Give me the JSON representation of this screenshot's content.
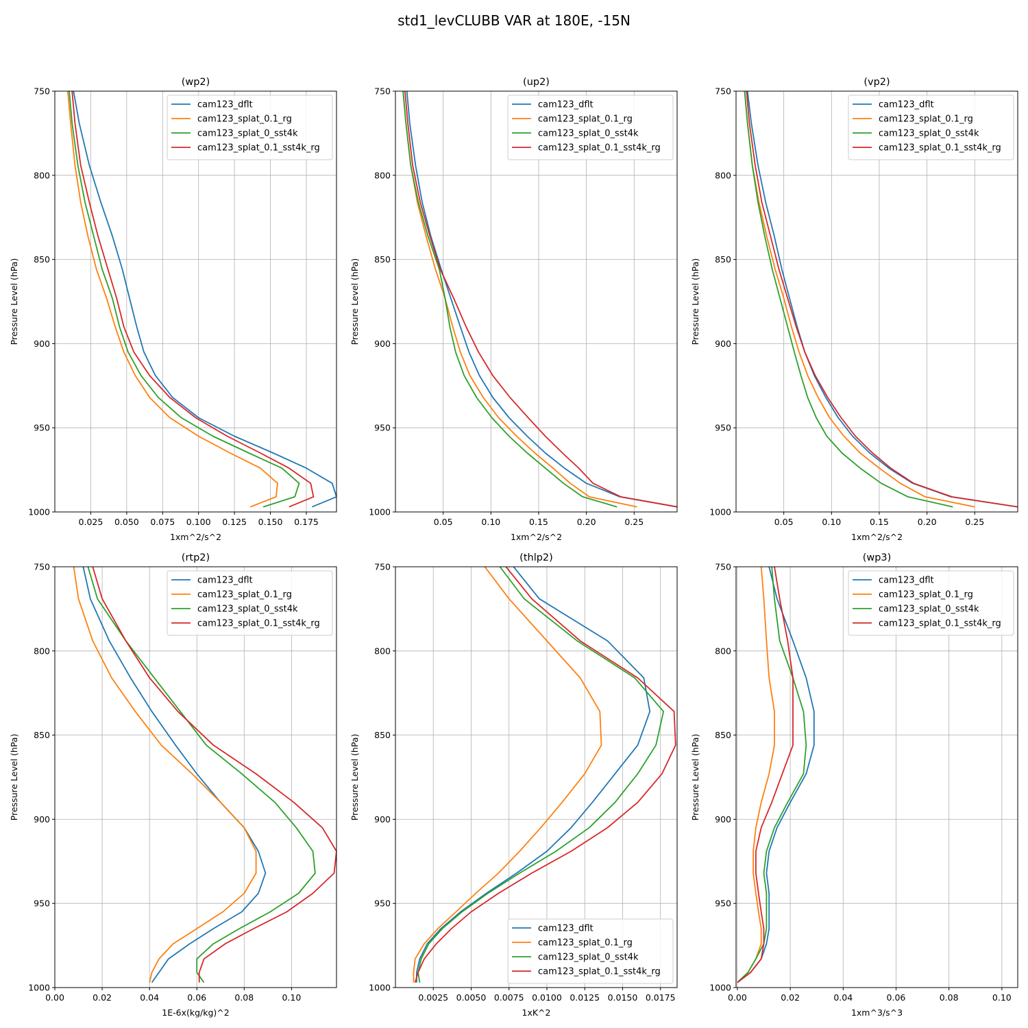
{
  "figure": {
    "title": "std1_levCLUBB VAR at 180E, -15N"
  },
  "colors": {
    "cam123_dflt": "#1f77b4",
    "cam123_splat_0.1_rg": "#ff7f0e",
    "cam123_splat_0_sst4k": "#2ca02c",
    "cam123_splat_0.1_sst4k_rg": "#d62728"
  },
  "chart_data": [
    {
      "type": "line",
      "title": "(wp2)",
      "xlabel": "1xm^2/s^2",
      "ylabel": "Pressure Level (hPa)",
      "xlim": [
        0.0,
        0.196
      ],
      "ylim": [
        750,
        1000
      ],
      "y_inverted": true,
      "xticks": [
        0.025,
        0.05,
        0.075,
        0.1,
        0.125,
        0.15,
        0.175
      ],
      "xtick_labels": [
        "0.025",
        "0.050",
        "0.075",
        "0.100",
        "0.125",
        "0.150",
        "0.175"
      ],
      "yticks": [
        750,
        800,
        850,
        900,
        950,
        1000
      ],
      "ytick_labels": [
        "750",
        "800",
        "850",
        "900",
        "950",
        "1000"
      ],
      "legend": "upper right",
      "legend_entries": [
        "cam123_dflt",
        "cam123_splat_0.1_rg",
        "cam123_splat_0_sst4k",
        "cam123_splat_0.1_sst4k_rg"
      ],
      "y": [
        750,
        769,
        794,
        816,
        836,
        856,
        873,
        890,
        905,
        919,
        932,
        944,
        955,
        965,
        974,
        983,
        991,
        997
      ],
      "series": [
        {
          "name": "cam123_dflt",
          "values": [
            0.013,
            0.017,
            0.024,
            0.032,
            0.04,
            0.047,
            0.052,
            0.057,
            0.062,
            0.07,
            0.082,
            0.1,
            0.125,
            0.152,
            0.175,
            0.193,
            0.196,
            0.179
          ]
        },
        {
          "name": "cam123_splat_0.1_rg",
          "values": [
            0.009,
            0.011,
            0.014,
            0.018,
            0.023,
            0.029,
            0.036,
            0.042,
            0.048,
            0.056,
            0.066,
            0.08,
            0.1,
            0.122,
            0.143,
            0.155,
            0.154,
            0.136
          ]
        },
        {
          "name": "cam123_splat_0_sst4k",
          "values": [
            0.01,
            0.012,
            0.016,
            0.021,
            0.027,
            0.033,
            0.04,
            0.045,
            0.051,
            0.06,
            0.072,
            0.088,
            0.11,
            0.135,
            0.158,
            0.17,
            0.167,
            0.145
          ]
        },
        {
          "name": "cam123_splat_0.1_sst4k_rg",
          "values": [
            0.012,
            0.014,
            0.018,
            0.024,
            0.03,
            0.037,
            0.043,
            0.048,
            0.055,
            0.066,
            0.08,
            0.098,
            0.12,
            0.143,
            0.163,
            0.178,
            0.18,
            0.163
          ]
        }
      ]
    },
    {
      "type": "line",
      "title": "(up2)",
      "xlabel": "1xm^2/s^2",
      "ylabel": "Pressure Level (hPa)",
      "xlim": [
        0.0,
        0.295
      ],
      "ylim": [
        750,
        1000
      ],
      "y_inverted": true,
      "xticks": [
        0.05,
        0.1,
        0.15,
        0.2,
        0.25
      ],
      "xtick_labels": [
        "0.05",
        "0.10",
        "0.15",
        "0.20",
        "0.25"
      ],
      "yticks": [
        750,
        800,
        850,
        900,
        950,
        1000
      ],
      "ytick_labels": [
        "750",
        "800",
        "850",
        "900",
        "950",
        "1000"
      ],
      "legend": "upper right",
      "legend_entries": [
        "cam123_dflt",
        "cam123_splat_0.1_rg",
        "cam123_splat_0_sst4k",
        "cam123_splat_0.1_sst4k_rg"
      ],
      "y": [
        750,
        769,
        794,
        816,
        836,
        856,
        873,
        890,
        905,
        919,
        932,
        944,
        955,
        965,
        974,
        983,
        991,
        997
      ],
      "series": [
        {
          "name": "cam123_dflt",
          "values": [
            0.012,
            0.015,
            0.021,
            0.028,
            0.037,
            0.048,
            0.058,
            0.068,
            0.077,
            0.088,
            0.102,
            0.119,
            0.138,
            0.157,
            0.177,
            0.2,
            0.235,
            0.295
          ]
        },
        {
          "name": "cam123_splat_0.1_rg",
          "values": [
            0.008,
            0.011,
            0.016,
            0.023,
            0.032,
            0.042,
            0.052,
            0.06,
            0.068,
            0.078,
            0.092,
            0.108,
            0.127,
            0.146,
            0.165,
            0.183,
            0.203,
            0.253
          ]
        },
        {
          "name": "cam123_splat_0_sst4k",
          "values": [
            0.008,
            0.011,
            0.016,
            0.024,
            0.034,
            0.046,
            0.052,
            0.057,
            0.063,
            0.072,
            0.085,
            0.101,
            0.119,
            0.138,
            0.157,
            0.176,
            0.196,
            0.232
          ]
        },
        {
          "name": "cam123_splat_0.1_sst4k_rg",
          "values": [
            0.01,
            0.013,
            0.018,
            0.026,
            0.036,
            0.047,
            0.061,
            0.074,
            0.087,
            0.102,
            0.12,
            0.139,
            0.157,
            0.175,
            0.192,
            0.207,
            0.236,
            0.295
          ]
        }
      ]
    },
    {
      "type": "line",
      "title": "(vp2)",
      "xlabel": "1xm^2/s^2",
      "ylabel": "Pressure Level (hPa)",
      "xlim": [
        0.0,
        0.295
      ],
      "ylim": [
        750,
        1000
      ],
      "y_inverted": true,
      "xticks": [
        0.05,
        0.1,
        0.15,
        0.2,
        0.25
      ],
      "xtick_labels": [
        "0.05",
        "0.10",
        "0.15",
        "0.20",
        "0.25"
      ],
      "yticks": [
        750,
        800,
        850,
        900,
        950,
        1000
      ],
      "ytick_labels": [
        "750",
        "800",
        "850",
        "900",
        "950",
        "1000"
      ],
      "legend": "upper right",
      "legend_entries": [
        "cam123_dflt",
        "cam123_splat_0.1_rg",
        "cam123_splat_0_sst4k",
        "cam123_splat_0.1_sst4k_rg"
      ],
      "y": [
        750,
        769,
        794,
        816,
        836,
        856,
        873,
        890,
        905,
        919,
        932,
        944,
        955,
        965,
        974,
        983,
        991,
        997
      ],
      "series": [
        {
          "name": "cam123_dflt",
          "values": [
            0.012,
            0.016,
            0.023,
            0.031,
            0.04,
            0.048,
            0.056,
            0.064,
            0.072,
            0.082,
            0.094,
            0.107,
            0.122,
            0.14,
            0.16,
            0.185,
            0.225,
            0.295
          ]
        },
        {
          "name": "cam123_splat_0.1_rg",
          "values": [
            0.009,
            0.012,
            0.017,
            0.024,
            0.032,
            0.041,
            0.05,
            0.058,
            0.066,
            0.075,
            0.086,
            0.098,
            0.113,
            0.13,
            0.15,
            0.172,
            0.198,
            0.25
          ]
        },
        {
          "name": "cam123_splat_0_sst4k",
          "values": [
            0.009,
            0.012,
            0.017,
            0.023,
            0.03,
            0.038,
            0.046,
            0.054,
            0.061,
            0.068,
            0.075,
            0.084,
            0.095,
            0.111,
            0.13,
            0.152,
            0.18,
            0.227
          ]
        },
        {
          "name": "cam123_splat_0.1_sst4k_rg",
          "values": [
            0.011,
            0.014,
            0.02,
            0.027,
            0.036,
            0.045,
            0.054,
            0.063,
            0.072,
            0.083,
            0.096,
            0.11,
            0.125,
            0.143,
            0.162,
            0.186,
            0.226,
            0.295
          ]
        }
      ]
    },
    {
      "type": "line",
      "title": "(rtp2)",
      "xlabel": "1E-6x(kg/kg)^2",
      "ylabel": "Pressure Level (hPa)",
      "xlim": [
        0.0,
        0.119
      ],
      "ylim": [
        750,
        1000
      ],
      "y_inverted": true,
      "xticks": [
        0.0,
        0.02,
        0.04,
        0.06,
        0.08,
        0.1
      ],
      "xtick_labels": [
        "0.00",
        "0.02",
        "0.04",
        "0.06",
        "0.08",
        "0.10"
      ],
      "yticks": [
        750,
        800,
        850,
        900,
        950,
        1000
      ],
      "ytick_labels": [
        "750",
        "800",
        "850",
        "900",
        "950",
        "1000"
      ],
      "legend": "upper right",
      "legend_entries": [
        "cam123_dflt",
        "cam123_splat_0.1_rg",
        "cam123_splat_0_sst4k",
        "cam123_splat_0.1_sst4k_rg"
      ],
      "y": [
        750,
        769,
        794,
        816,
        836,
        856,
        873,
        890,
        905,
        919,
        932,
        944,
        955,
        965,
        974,
        983,
        991,
        997
      ],
      "series": [
        {
          "name": "cam123_dflt",
          "values": [
            0.012,
            0.015,
            0.023,
            0.032,
            0.041,
            0.051,
            0.06,
            0.07,
            0.08,
            0.086,
            0.089,
            0.086,
            0.079,
            0.067,
            0.057,
            0.048,
            0.044,
            0.041
          ]
        },
        {
          "name": "cam123_splat_0.1_rg",
          "values": [
            0.008,
            0.01,
            0.016,
            0.024,
            0.034,
            0.045,
            0.058,
            0.07,
            0.08,
            0.085,
            0.085,
            0.08,
            0.071,
            0.06,
            0.05,
            0.044,
            0.041,
            0.04
          ]
        },
        {
          "name": "cam123_splat_0_sst4k",
          "values": [
            0.014,
            0.018,
            0.03,
            0.042,
            0.053,
            0.064,
            0.079,
            0.093,
            0.102,
            0.109,
            0.11,
            0.103,
            0.091,
            0.078,
            0.067,
            0.06,
            0.06,
            0.063
          ]
        },
        {
          "name": "cam123_splat_0.1_sst4k_rg",
          "values": [
            0.016,
            0.02,
            0.03,
            0.04,
            0.052,
            0.067,
            0.085,
            0.101,
            0.113,
            0.119,
            0.118,
            0.109,
            0.098,
            0.084,
            0.072,
            0.063,
            0.061,
            0.061
          ]
        }
      ]
    },
    {
      "type": "line",
      "title": "(thlp2)",
      "xlabel": "1xK^2",
      "ylabel": "Pressure Level (hPa)",
      "xlim": [
        0.0,
        0.0186
      ],
      "ylim": [
        750,
        1000
      ],
      "y_inverted": true,
      "xticks": [
        0.0025,
        0.005,
        0.0075,
        0.01,
        0.0125,
        0.015,
        0.0175
      ],
      "xtick_labels": [
        "0.0025",
        "0.0050",
        "0.0075",
        "0.0100",
        "0.0125",
        "0.0150",
        "0.0175"
      ],
      "yticks": [
        750,
        800,
        850,
        900,
        950,
        1000
      ],
      "ytick_labels": [
        "750",
        "800",
        "850",
        "900",
        "950",
        "1000"
      ],
      "legend": "lower right",
      "legend_entries": [
        "cam123_dflt",
        "cam123_splat_0.1_rg",
        "cam123_splat_0_sst4k",
        "cam123_splat_0.1_sst4k_rg"
      ],
      "y": [
        750,
        769,
        794,
        816,
        836,
        856,
        873,
        890,
        905,
        919,
        932,
        944,
        955,
        965,
        974,
        983,
        991,
        997
      ],
      "series": [
        {
          "name": "cam123_dflt",
          "values": [
            0.0078,
            0.0095,
            0.014,
            0.0164,
            0.0168,
            0.016,
            0.0145,
            0.013,
            0.0116,
            0.01,
            0.008,
            0.006,
            0.0043,
            0.003,
            0.0021,
            0.0016,
            0.0014,
            0.0014
          ]
        },
        {
          "name": "cam123_splat_0.1_rg",
          "values": [
            0.0059,
            0.0075,
            0.01,
            0.0122,
            0.0135,
            0.0136,
            0.0125,
            0.011,
            0.0096,
            0.0082,
            0.0068,
            0.0053,
            0.004,
            0.0028,
            0.0019,
            0.0013,
            0.0012,
            0.0012
          ]
        },
        {
          "name": "cam123_splat_0_sst4k",
          "values": [
            0.0069,
            0.0085,
            0.012,
            0.0158,
            0.0177,
            0.0172,
            0.016,
            0.0145,
            0.0128,
            0.0106,
            0.0082,
            0.0061,
            0.0044,
            0.0031,
            0.0022,
            0.0017,
            0.0015,
            0.0016
          ]
        },
        {
          "name": "cam123_splat_0.1_sst4k_rg",
          "values": [
            0.0073,
            0.009,
            0.0122,
            0.016,
            0.0184,
            0.0185,
            0.0176,
            0.016,
            0.014,
            0.0116,
            0.009,
            0.0068,
            0.005,
            0.0037,
            0.0027,
            0.0019,
            0.0015,
            0.0013
          ]
        }
      ]
    },
    {
      "type": "line",
      "title": "(wp3)",
      "xlabel": "1xm^3/s^3",
      "ylabel": "Pressure Level (hPa)",
      "xlim": [
        -0.0005,
        0.106
      ],
      "ylim": [
        750,
        1000
      ],
      "y_inverted": true,
      "xticks": [
        0.0,
        0.02,
        0.04,
        0.06,
        0.08,
        0.1
      ],
      "xtick_labels": [
        "0.00",
        "0.02",
        "0.04",
        "0.06",
        "0.08",
        "0.10"
      ],
      "yticks": [
        750,
        800,
        850,
        900,
        950,
        1000
      ],
      "ytick_labels": [
        "750",
        "800",
        "850",
        "900",
        "950",
        "1000"
      ],
      "legend": "upper right",
      "legend_entries": [
        "cam123_dflt",
        "cam123_splat_0.1_rg",
        "cam123_splat_0_sst4k",
        "cam123_splat_0.1_sst4k_rg"
      ],
      "y": [
        750,
        769,
        794,
        816,
        836,
        856,
        873,
        890,
        905,
        919,
        932,
        944,
        955,
        965,
        974,
        983,
        991,
        997
      ],
      "series": [
        {
          "name": "cam123_dflt",
          "values": [
            0.012,
            0.015,
            0.021,
            0.026,
            0.029,
            0.029,
            0.026,
            0.02,
            0.015,
            0.012,
            0.011,
            0.012,
            0.012,
            0.012,
            0.011,
            0.009,
            0.005,
            0.0
          ]
        },
        {
          "name": "cam123_splat_0.1_rg",
          "values": [
            0.009,
            0.01,
            0.011,
            0.012,
            0.014,
            0.014,
            0.012,
            0.009,
            0.007,
            0.006,
            0.006,
            0.007,
            0.008,
            0.009,
            0.009,
            0.007,
            0.004,
            0.0
          ]
        },
        {
          "name": "cam123_splat_0_sst4k",
          "values": [
            0.013,
            0.014,
            0.016,
            0.021,
            0.025,
            0.026,
            0.025,
            0.019,
            0.014,
            0.011,
            0.01,
            0.011,
            0.011,
            0.011,
            0.01,
            0.007,
            0.004,
            0.0
          ]
        },
        {
          "name": "cam123_splat_0.1_sst4k_rg",
          "values": [
            0.014,
            0.016,
            0.019,
            0.021,
            0.021,
            0.021,
            0.017,
            0.013,
            0.009,
            0.007,
            0.007,
            0.008,
            0.009,
            0.01,
            0.01,
            0.009,
            0.005,
            0.0
          ]
        }
      ]
    }
  ]
}
